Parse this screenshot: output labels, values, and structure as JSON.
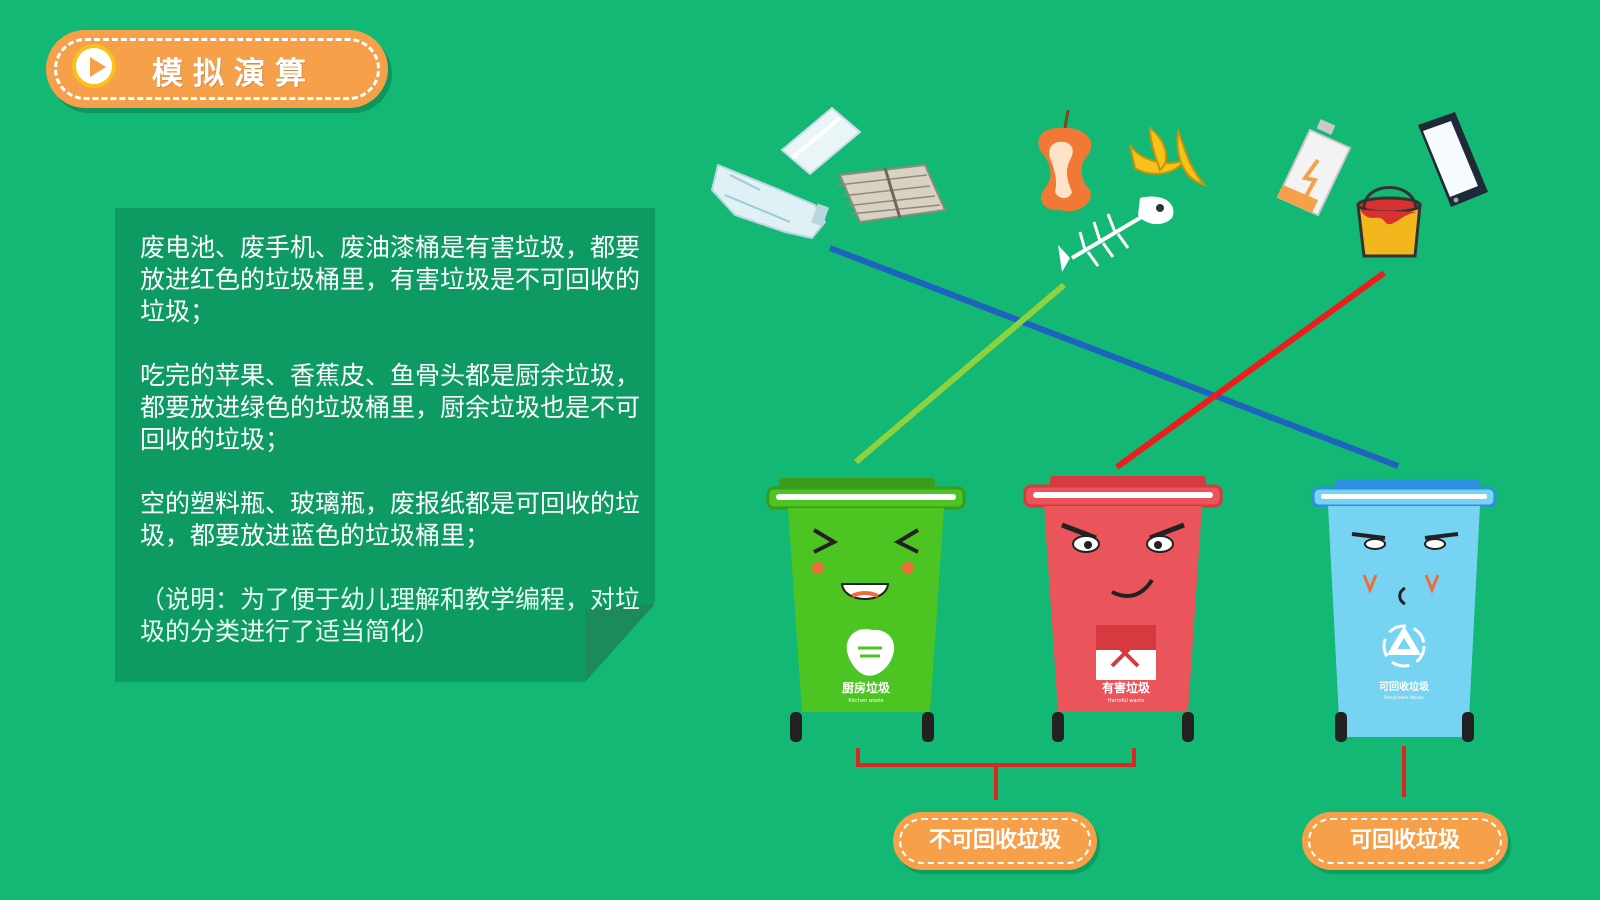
{
  "title": "模拟演算",
  "note": {
    "paragraphs": [
      "废电池、废手机、废油漆桶是有害垃圾，都要放进红色的垃圾桶里，有害垃圾是不可回收的垃圾；",
      "吃完的苹果、香蕉皮、鱼骨头都是厨余垃圾，都要放进绿色的垃圾桶里，厨余垃圾也是不可回收的垃圾；",
      "空的塑料瓶、玻璃瓶，废报纸都是可回收的垃圾，都要放进蓝色的垃圾桶里；"
    ],
    "remark": "（说明：为了便于幼儿理解和教学编程，对垃圾的分类进行了适当简化）"
  },
  "bins": [
    {
      "label": "厨房垃圾",
      "sublabel": "Kitchen waste",
      "color": "#4cc522",
      "lid": "#3a9d1a"
    },
    {
      "label": "有害垃圾",
      "sublabel": "Harmful waste",
      "color": "#e9555a",
      "lid": "#d63a40"
    },
    {
      "label": "可回收垃圾",
      "sublabel": "Recyclable Waste",
      "color": "#76d3f2",
      "lid": "#2e8fde"
    }
  ],
  "groups": {
    "non_recyclable": "不可回收垃圾",
    "recyclable": "可回收垃圾"
  },
  "line_colors": {
    "kitchen": "#8ed33e",
    "harmful": "#ee1c1c",
    "recyclable": "#1e63c0"
  },
  "accent": "#f6a04a"
}
